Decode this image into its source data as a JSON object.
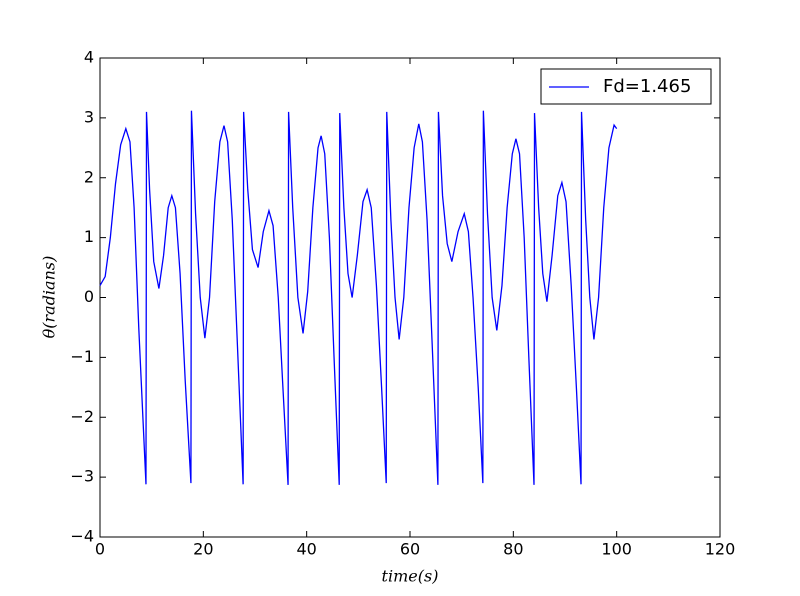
{
  "chart_data": {
    "type": "line",
    "x_label": "time(s)",
    "y_label": "θ(radians)",
    "x": [
      0,
      1,
      2,
      3,
      4,
      5,
      5.8,
      6.6,
      7.5,
      8.3,
      8.9,
      9.0,
      9.6,
      10.4,
      11.4,
      12.3,
      13.2,
      13.9,
      14.6,
      15.5,
      16.5,
      17.6,
      17.7,
      18.5,
      19.4,
      20.3,
      21.2,
      22.2,
      23.2,
      24,
      24.7,
      25.6,
      26.6,
      27.7,
      27.8,
      28.6,
      29.5,
      30.6,
      31.6,
      32.7,
      33.5,
      34.5,
      35.4,
      36.4,
      36.5,
      37.3,
      38.3,
      39.3,
      40.2,
      41.2,
      42.2,
      42.8,
      43.5,
      44.4,
      45.3,
      46.3,
      46.4,
      47.2,
      48.0,
      48.8,
      49.8,
      50.9,
      51.7,
      52.5,
      53.5,
      54.5,
      55.4,
      55.5,
      56.3,
      57.1,
      57.9,
      58.8,
      59.8,
      60.8,
      61.7,
      62.4,
      63.3,
      64.3,
      65.4,
      65.5,
      66.3,
      67.2,
      68.1,
      69.3,
      70.5,
      71.3,
      72.2,
      73.2,
      74.1,
      74.2,
      75.0,
      75.9,
      76.8,
      77.8,
      78.8,
      79.8,
      80.5,
      81.2,
      82.1,
      83.0,
      84.0,
      84.1,
      84.9,
      85.7,
      86.5,
      87.5,
      88.6,
      89.4,
      90.2,
      91.2,
      92.2,
      93.1,
      93.2,
      94.0,
      94.8,
      95.6,
      96.5,
      97.5,
      98.5,
      99.5,
      100
    ],
    "series": [
      {
        "name": "Fd=1.465",
        "color": "#0000ff",
        "values": [
          0.2,
          0.35,
          1.0,
          1.9,
          2.55,
          2.82,
          2.6,
          1.5,
          -0.5,
          -2.0,
          -3.12,
          3.1,
          1.8,
          0.6,
          0.15,
          0.7,
          1.5,
          1.7,
          1.5,
          0.4,
          -1.4,
          -3.1,
          3.12,
          1.4,
          0.0,
          -0.68,
          0.0,
          1.6,
          2.6,
          2.87,
          2.6,
          1.3,
          -0.8,
          -3.12,
          3.1,
          1.8,
          0.8,
          0.5,
          1.1,
          1.45,
          1.2,
          0.0,
          -1.5,
          -3.13,
          3.1,
          1.5,
          0.0,
          -0.6,
          0.1,
          1.5,
          2.5,
          2.7,
          2.4,
          1.0,
          -1.0,
          -3.13,
          3.08,
          1.5,
          0.4,
          0.0,
          0.7,
          1.6,
          1.8,
          1.5,
          0.2,
          -1.5,
          -3.1,
          3.1,
          1.3,
          0.0,
          -0.7,
          0.0,
          1.5,
          2.5,
          2.9,
          2.6,
          1.3,
          -0.8,
          -3.13,
          3.1,
          1.7,
          0.9,
          0.6,
          1.1,
          1.4,
          1.1,
          0.0,
          -1.5,
          -3.1,
          3.12,
          1.4,
          0.0,
          -0.55,
          0.2,
          1.5,
          2.4,
          2.65,
          2.4,
          1.0,
          -1.0,
          -3.13,
          3.08,
          1.5,
          0.4,
          -0.07,
          0.7,
          1.7,
          1.92,
          1.6,
          0.2,
          -1.5,
          -3.12,
          3.1,
          1.3,
          0.0,
          -0.7,
          0.0,
          1.5,
          2.5,
          2.88,
          2.82
        ]
      }
    ],
    "xlim": [
      0,
      120
    ],
    "xticks": [
      0,
      20,
      40,
      60,
      80,
      100,
      120
    ],
    "ylim": [
      -4,
      4
    ],
    "yticks": [
      {
        "value": -4,
        "label": "−4"
      },
      {
        "value": -3,
        "label": "−3"
      },
      {
        "value": -2,
        "label": "−2"
      },
      {
        "value": -1,
        "label": "−1"
      },
      0,
      1,
      2,
      3,
      4
    ],
    "legend_position": "upper right",
    "grid": false
  }
}
